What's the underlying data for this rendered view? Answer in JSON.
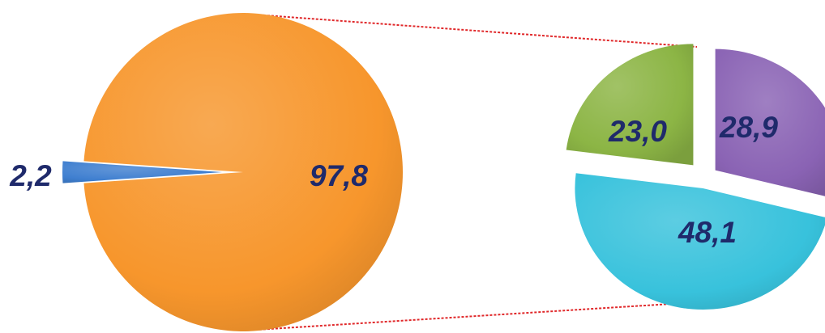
{
  "chart_data": [
    {
      "type": "pie",
      "title": "",
      "slices": [
        {
          "label": "97,8",
          "value": 97.8,
          "color": "#f7962c"
        },
        {
          "label": "2,2",
          "value": 2.2,
          "color": "#3f7fd0"
        }
      ]
    },
    {
      "type": "pie",
      "title": "",
      "slices": [
        {
          "label": "28,9",
          "value": 28.9,
          "color": "#8a63b4"
        },
        {
          "label": "48,1",
          "value": 48.1,
          "color": "#38c2dc"
        },
        {
          "label": "23,0",
          "value": 23.0,
          "color": "#8cb545"
        }
      ]
    }
  ],
  "colors": {
    "connector": "#e0282a",
    "label": "#1f2a6b"
  }
}
